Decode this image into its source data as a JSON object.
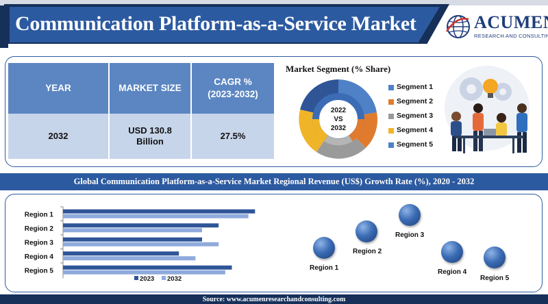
{
  "header": {
    "title": "Communication Platform-as-a-Service Market",
    "logo_word": "ACUMEN",
    "logo_sub": "RESEARCH AND CONSULTING"
  },
  "table": {
    "headers": [
      "YEAR",
      "MARKET SIZE",
      "CAGR %\n(2023-2032)"
    ],
    "row": [
      "2032",
      "USD 130.8\nBillion",
      "27.5%"
    ]
  },
  "segment": {
    "title": "Market Segment (% Share)",
    "center_text": "2022\nVS\n2032",
    "legend": [
      "Segment 1",
      "Segment 2",
      "Segment 3",
      "Segment 4",
      "Segment 5"
    ],
    "colors": [
      "#4f81c7",
      "#e07b2e",
      "#9a9a9a",
      "#f0b428",
      "#4f81c7"
    ]
  },
  "banner": {
    "text": "Global Communication Platform-as-a-Service Market Regional Revenue (US$) Growth Rate (%), 2020 - 2032"
  },
  "chart_data": {
    "type": "bar",
    "orientation": "horizontal",
    "categories": [
      "Region 1",
      "Region 2",
      "Region 3",
      "Region 4",
      "Region 5"
    ],
    "series": [
      {
        "name": "2023",
        "color": "#2f5597",
        "values": [
          290,
          235,
          210,
          175,
          255
        ]
      },
      {
        "name": "2032",
        "color": "#8faadc",
        "values": [
          280,
          210,
          235,
          200,
          245
        ]
      }
    ],
    "xlim": [
      0,
      300
    ],
    "grid": false,
    "legend": "bottom"
  },
  "bubble_labels": [
    "Region 1",
    "Region 2",
    "Region 3",
    "Region 4",
    "Region 5"
  ],
  "footer": {
    "text": "Source: www.acumenresearchandconsulting.com"
  }
}
